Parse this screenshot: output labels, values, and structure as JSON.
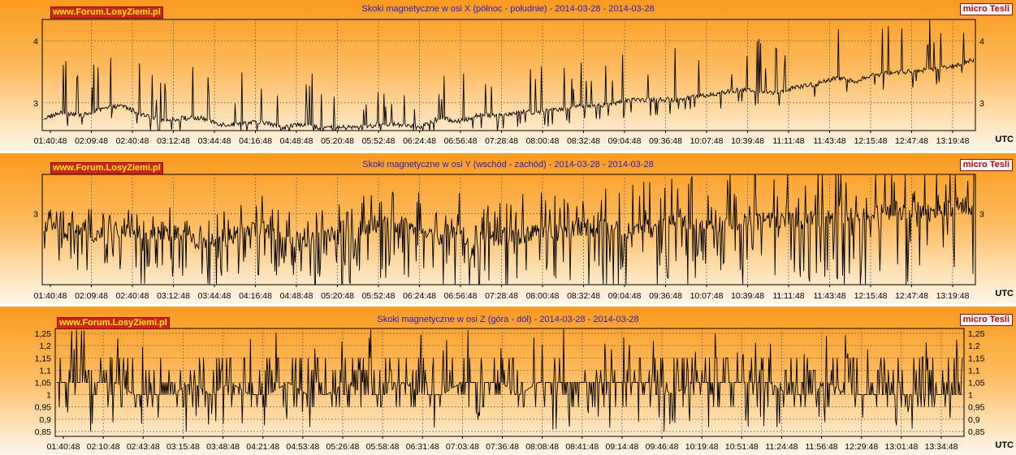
{
  "brand": "www.Forum.LosyZiemi.pl",
  "unit_label": "micro Tesli",
  "utc_label": "UTC",
  "colors": {
    "line": "#000000",
    "title": "#2a19c8",
    "brand_bg": "#d2241b",
    "brand_text": "#ffee00",
    "unit_text": "#c40000",
    "grid": "#7a6a5a"
  },
  "chart_data": [
    {
      "type": "line",
      "title": "Skoki magnetyczne w osi X (północ - południe) - 2014-03-28 - 2014-03-28",
      "x_tick_labels": [
        "01:40:48",
        "02:09:48",
        "02:40:48",
        "03:12:48",
        "03:44:48",
        "04:16:48",
        "04:48:48",
        "05:20:48",
        "05:52:48",
        "06:24:48",
        "06:56:48",
        "07:28:48",
        "08:00:48",
        "08:32:48",
        "09:04:48",
        "09:36:48",
        "10:07:48",
        "10:39:48",
        "11:11:48",
        "11:43:48",
        "12:15:48",
        "12:47:48",
        "13:19:48"
      ],
      "y_ticks": [
        3,
        4
      ],
      "ylim": [
        2.55,
        4.35
      ],
      "grid": true,
      "series": [
        {
          "values": [
            2.75,
            2.85,
            2.8,
            2.9,
            2.95,
            2.8,
            2.7,
            2.75,
            2.75,
            2.65,
            2.65,
            2.7,
            2.6,
            2.65,
            2.6,
            2.6,
            2.6,
            2.65,
            2.65,
            2.6,
            2.75,
            2.7,
            2.8,
            2.8,
            2.85,
            2.85,
            2.9,
            2.95,
            2.95,
            3.0,
            3.05,
            3.05,
            3.05,
            3.1,
            3.15,
            3.2,
            3.2,
            3.15,
            3.25,
            3.3,
            3.4,
            3.35,
            3.45,
            3.5,
            3.5,
            3.55,
            3.6,
            3.7
          ]
        }
      ]
    },
    {
      "type": "line",
      "title": "Skoki magnetyczne w osi Y (wschód - zachód) - 2014-03-28 - 2014-03-28",
      "x_tick_labels": [
        "01:40:48",
        "02:09:48",
        "02:40:48",
        "03:12:48",
        "03:44:48",
        "04:16:48",
        "04:48:48",
        "05:20:48",
        "05:52:48",
        "06:24:48",
        "06:56:48",
        "07:28:48",
        "08:00:48",
        "08:32:48",
        "09:04:48",
        "09:36:48",
        "10:07:48",
        "10:39:48",
        "11:11:48",
        "11:43:48",
        "12:15:48",
        "12:47:48",
        "13:19:48"
      ],
      "y_ticks": [
        3
      ],
      "ylim": [
        2.55,
        3.25
      ],
      "grid": true,
      "series": [
        {
          "values": [
            2.95,
            2.88,
            2.9,
            2.85,
            2.92,
            2.82,
            2.9,
            2.85,
            2.82,
            2.85,
            2.88,
            2.92,
            2.85,
            2.82,
            2.88,
            2.85,
            2.9,
            2.92,
            2.95,
            2.9,
            2.85,
            2.88,
            2.82,
            2.85,
            2.86,
            2.9,
            2.88,
            2.92,
            2.9,
            2.88,
            2.92,
            2.9,
            2.95,
            2.92,
            2.9,
            2.93,
            2.95,
            2.97,
            2.95,
            2.97,
            3.0,
            2.98,
            3.0,
            3.02,
            3.03,
            3.0,
            3.05,
            3.05
          ]
        }
      ]
    },
    {
      "type": "line",
      "title": "Skoki magnetyczne w osi Z (góra - dół) - 2014-03-28 - 2014-03-28",
      "x_tick_labels": [
        "01:40:48",
        "02:10:48",
        "02:43:48",
        "03:15:48",
        "03:48:48",
        "04:21:48",
        "04:53:48",
        "05:26:48",
        "05:58:48",
        "06:31:48",
        "07:03:48",
        "07:36:48",
        "08:08:48",
        "08:41:48",
        "09:14:48",
        "09:46:48",
        "10:19:48",
        "10:51:48",
        "11:24:48",
        "11:56:48",
        "12:29:48",
        "13:01:48",
        "13:34:48"
      ],
      "y_ticks": [
        "1,25",
        "1,2",
        "1,15",
        "1,1",
        "1,05",
        "1",
        "0,95",
        "0,9",
        "0,85"
      ],
      "ylim": [
        0.83,
        1.27
      ],
      "grid": true,
      "series": [
        {
          "values": [
            1.05,
            1.05,
            1.05,
            1.05,
            1.0,
            1.0,
            1.0,
            1.05,
            1.0,
            1.05,
            1.0,
            1.0,
            1.05,
            1.0,
            1.0,
            1.05,
            1.0,
            1.0,
            1.05,
            1.0,
            1.0,
            1.05,
            1.05,
            1.05,
            1.0,
            1.05,
            1.05,
            1.05,
            1.05,
            1.05,
            1.05,
            1.05,
            1.0,
            1.05,
            1.05,
            1.05,
            1.05,
            1.05,
            1.0,
            1.0,
            1.05,
            1.0,
            1.0,
            1.0,
            1.0,
            1.0,
            1.0,
            1.0
          ]
        }
      ]
    }
  ]
}
